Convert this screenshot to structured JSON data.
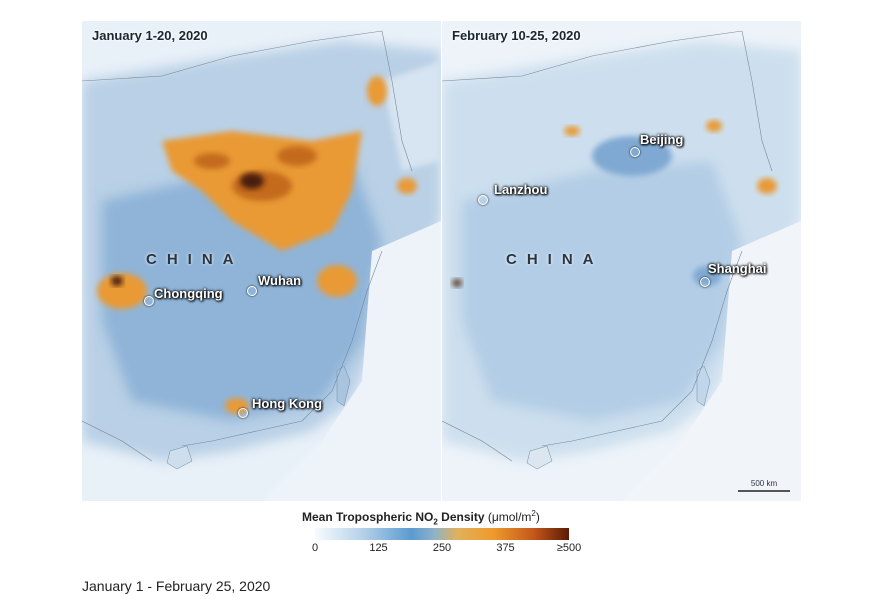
{
  "panels": [
    {
      "title": "January 1-20, 2020",
      "country": "CHINA",
      "cities": [
        "Chongqing",
        "Wuhan",
        "Hong Kong"
      ],
      "colors": {
        "hot": "#e99a35",
        "hotter": "#c46a1c",
        "hottest": "#4a1b07"
      }
    },
    {
      "title": "February 10-25, 2020",
      "country": "CHINA",
      "cities": [
        "Beijing",
        "Lanzhou",
        "Shanghai"
      ],
      "scale_label": "500 km"
    }
  ],
  "legend": {
    "title": "Mean Tropospheric NO",
    "subscript": "2",
    "title_suffix": " Density",
    "unit_prefix": " (μmol/m",
    "unit_sup": "2",
    "unit_suffix": ")",
    "ticks": [
      "0",
      "125",
      "250",
      "375",
      "≥500"
    ],
    "range": [
      0,
      500
    ]
  },
  "caption": "January 1 - February 25, 2020"
}
